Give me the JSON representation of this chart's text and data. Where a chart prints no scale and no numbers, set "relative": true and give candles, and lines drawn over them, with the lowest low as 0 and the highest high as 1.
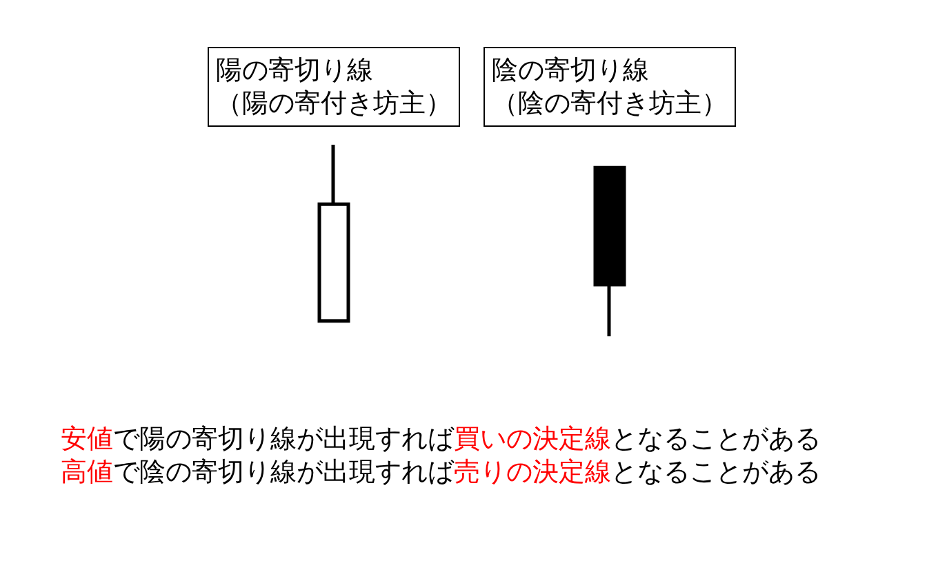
{
  "chart_data": {
    "type": "candlestick",
    "categories": [
      "陽の寄切り線（陽の寄付き坊主）",
      "陰の寄切り線（陰の寄付き坊主）"
    ],
    "ohlc": [
      [
        0.08,
        1,
        0.08,
        0.69
      ],
      [
        0.88,
        0.88,
        0,
        0.27
      ]
    ],
    "relative": true,
    "colors": [
      "#ffffff",
      "#000000"
    ],
    "color": "#000000",
    "annotations": [
      "安値",
      "で陽の寄切り線が出現すれば",
      "買いの決定線",
      "となることがある",
      "高値",
      "で陰の寄切り線が出現すれば",
      "売りの決定線",
      "となることがある"
    ]
  }
}
